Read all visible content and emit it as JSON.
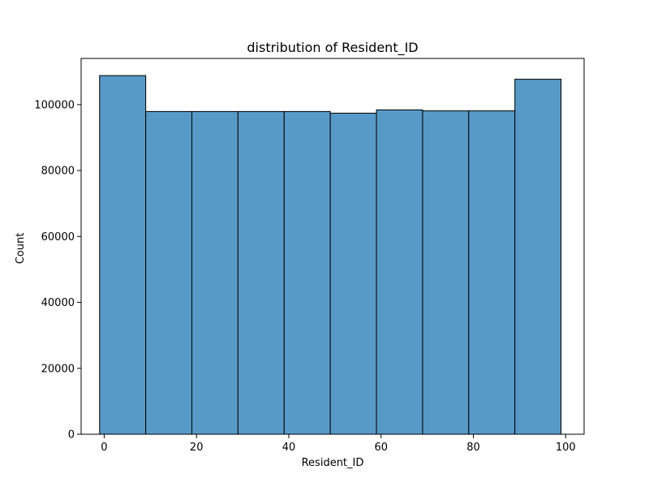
{
  "chart_data": {
    "type": "bar",
    "title": "distribution of Resident_ID",
    "xlabel": "Resident_ID",
    "ylabel": "Count",
    "xlim": [
      -5.0,
      104.0
    ],
    "ylim": [
      0,
      114000
    ],
    "x_ticks": [
      0,
      20,
      40,
      60,
      80,
      100
    ],
    "y_ticks": [
      0,
      20000,
      40000,
      60000,
      80000,
      100000
    ],
    "bins": [
      {
        "x0": -1,
        "x1": 9,
        "count": 108800
      },
      {
        "x0": 9,
        "x1": 19,
        "count": 97900
      },
      {
        "x0": 19,
        "x1": 29,
        "count": 97900
      },
      {
        "x0": 29,
        "x1": 39,
        "count": 97900
      },
      {
        "x0": 39,
        "x1": 49,
        "count": 97900
      },
      {
        "x0": 49,
        "x1": 59,
        "count": 97400
      },
      {
        "x0": 59,
        "x1": 69,
        "count": 98400
      },
      {
        "x0": 69,
        "x1": 79,
        "count": 98100
      },
      {
        "x0": 79,
        "x1": 89,
        "count": 98100
      },
      {
        "x0": 89,
        "x1": 99,
        "count": 107700
      }
    ],
    "colors": {
      "bar_fill": "#5799c7",
      "bar_edge": "#000000",
      "axis": "#000000"
    },
    "grid": false,
    "legend": "none"
  }
}
